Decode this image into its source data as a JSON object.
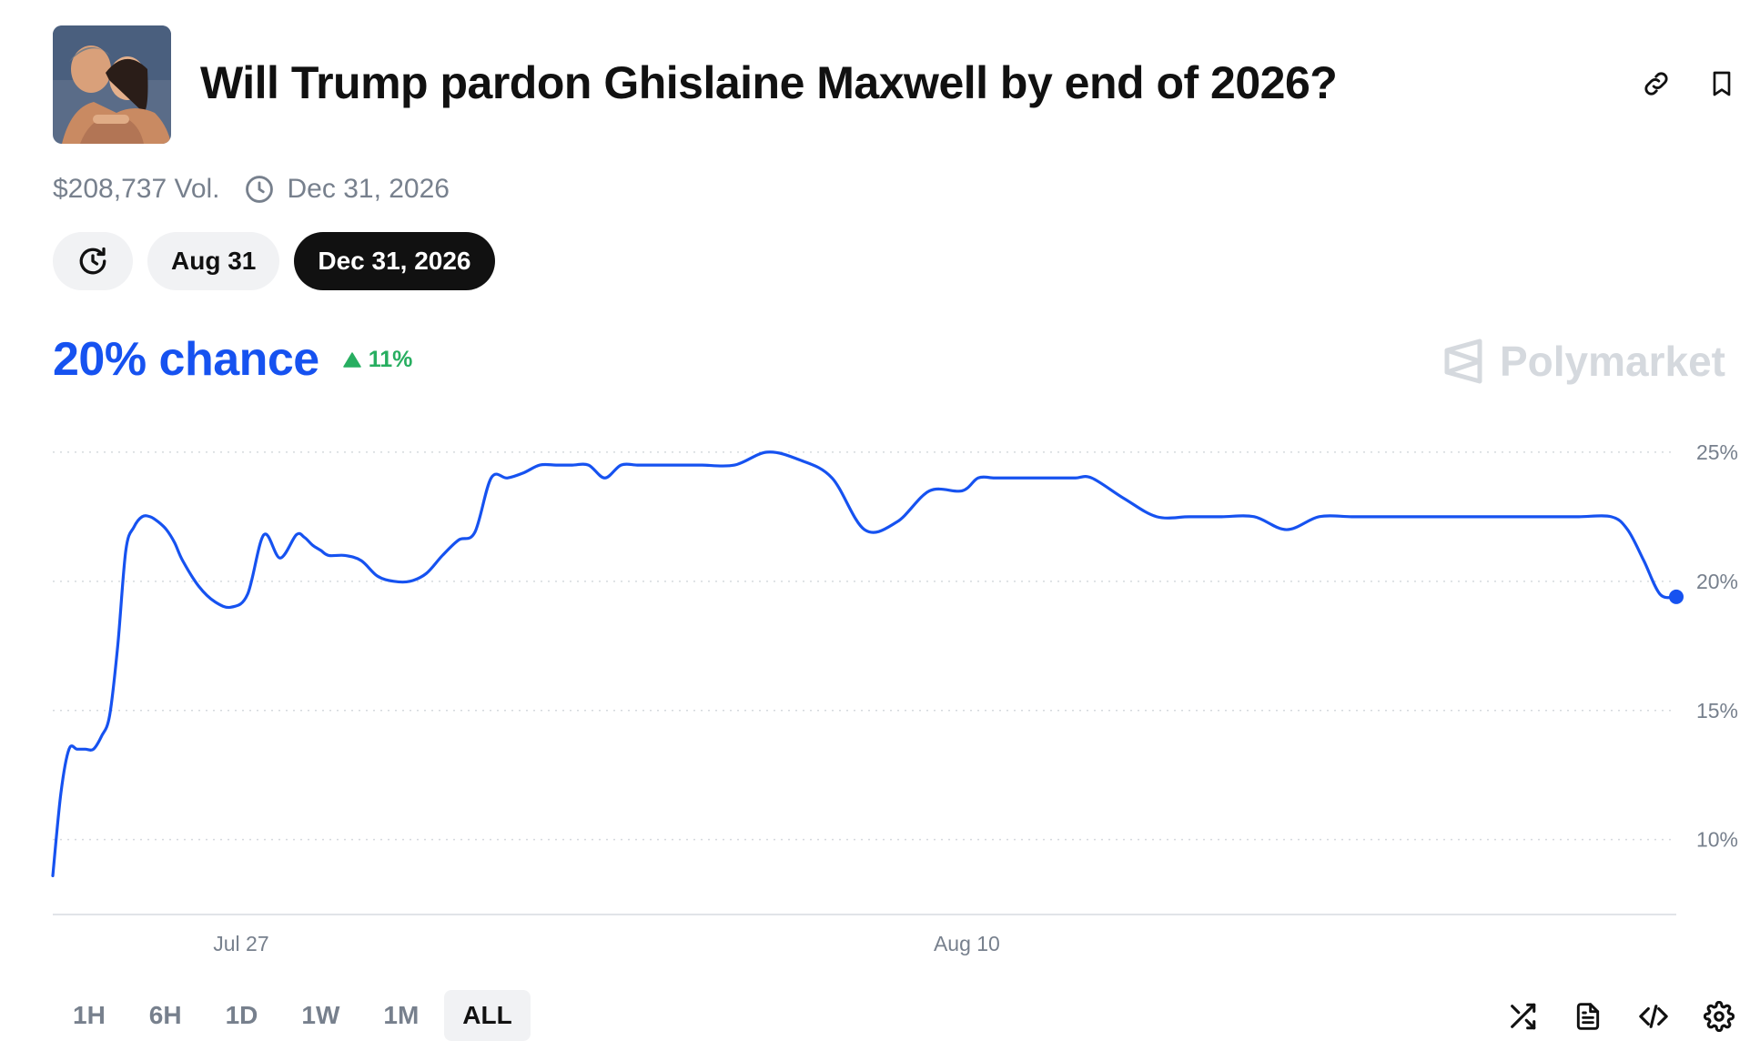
{
  "header": {
    "title": "Will Trump pardon Ghislaine Maxwell by end of 2026?",
    "link_icon": "link-icon",
    "bookmark_icon": "bookmark-icon"
  },
  "meta": {
    "volume": "$208,737 Vol.",
    "end_date": "Dec 31, 2026",
    "clock_icon": "clock-icon"
  },
  "date_pills": [
    {
      "label": "",
      "icon": "history-icon",
      "active": false
    },
    {
      "label": "Aug 31",
      "active": false
    },
    {
      "label": "Dec 31, 2026",
      "active": true
    }
  ],
  "summary": {
    "chance": "20% chance",
    "delta": "11%",
    "delta_direction": "up",
    "delta_color": "#27ae60",
    "accent_color": "#1652f0"
  },
  "brand": {
    "name": "Polymarket"
  },
  "chart_data": {
    "type": "line",
    "title": "",
    "xlabel": "",
    "ylabel": "",
    "x_tick_labels": [
      "Jul 27",
      "Aug 10"
    ],
    "y_tick_labels": [
      "25%",
      "20%",
      "15%",
      "10%"
    ],
    "y_ticks": [
      25,
      20,
      15,
      10
    ],
    "ylim": [
      7.1,
      26.3
    ],
    "xlim": [
      0,
      1000
    ],
    "x_tick_positions": [
      116,
      563
    ],
    "grid": true,
    "line_color": "#1652f0",
    "series": [
      {
        "name": "",
        "x": [
          0,
          5,
          10,
          15,
          20,
          25,
          30,
          35,
          40,
          45,
          50,
          55,
          60,
          65,
          70,
          75,
          80,
          90,
          100,
          110,
          120,
          130,
          140,
          150,
          155,
          160,
          165,
          170,
          180,
          190,
          200,
          210,
          220,
          230,
          240,
          250,
          260,
          270,
          280,
          290,
          300,
          310,
          320,
          330,
          340,
          350,
          360,
          370,
          380,
          390,
          400,
          420,
          440,
          460,
          480,
          500,
          520,
          540,
          560,
          570,
          580,
          590,
          600,
          610,
          620,
          630,
          640,
          660,
          680,
          700,
          720,
          740,
          760,
          780,
          800,
          820,
          840,
          850,
          860,
          870,
          880,
          900,
          920,
          940,
          960,
          970,
          980,
          990,
          1000
        ],
        "values": [
          8.6,
          11.8,
          13.5,
          13.5,
          13.5,
          13.5,
          14.0,
          14.8,
          17.5,
          21.2,
          22.1,
          22.5,
          22.5,
          22.3,
          22.0,
          21.5,
          20.8,
          19.8,
          19.2,
          19.0,
          19.5,
          21.8,
          20.9,
          21.8,
          21.7,
          21.4,
          21.2,
          21.0,
          21.0,
          20.8,
          20.2,
          20.0,
          20.0,
          20.3,
          21.0,
          21.6,
          21.9,
          24.0,
          24.0,
          24.2,
          24.5,
          24.5,
          24.5,
          24.5,
          24.0,
          24.5,
          24.5,
          24.5,
          24.5,
          24.5,
          24.5,
          24.5,
          25.0,
          24.7,
          24.0,
          22.0,
          22.3,
          23.5,
          23.5,
          24.0,
          24.0,
          24.0,
          24.0,
          24.0,
          24.0,
          24.0,
          24.0,
          23.2,
          22.5,
          22.5,
          22.5,
          22.5,
          22.0,
          22.5,
          22.5,
          22.5,
          22.5,
          22.5,
          22.5,
          22.5,
          22.5,
          22.5,
          22.5,
          22.5,
          22.5,
          22.0,
          20.8,
          19.5,
          19.4
        ]
      }
    ]
  },
  "ranges": [
    {
      "label": "1H",
      "active": false
    },
    {
      "label": "6H",
      "active": false
    },
    {
      "label": "1D",
      "active": false
    },
    {
      "label": "1W",
      "active": false
    },
    {
      "label": "1M",
      "active": false
    },
    {
      "label": "ALL",
      "active": true
    }
  ],
  "tools": [
    "shuffle-icon",
    "document-icon",
    "code-icon",
    "settings-icon"
  ]
}
